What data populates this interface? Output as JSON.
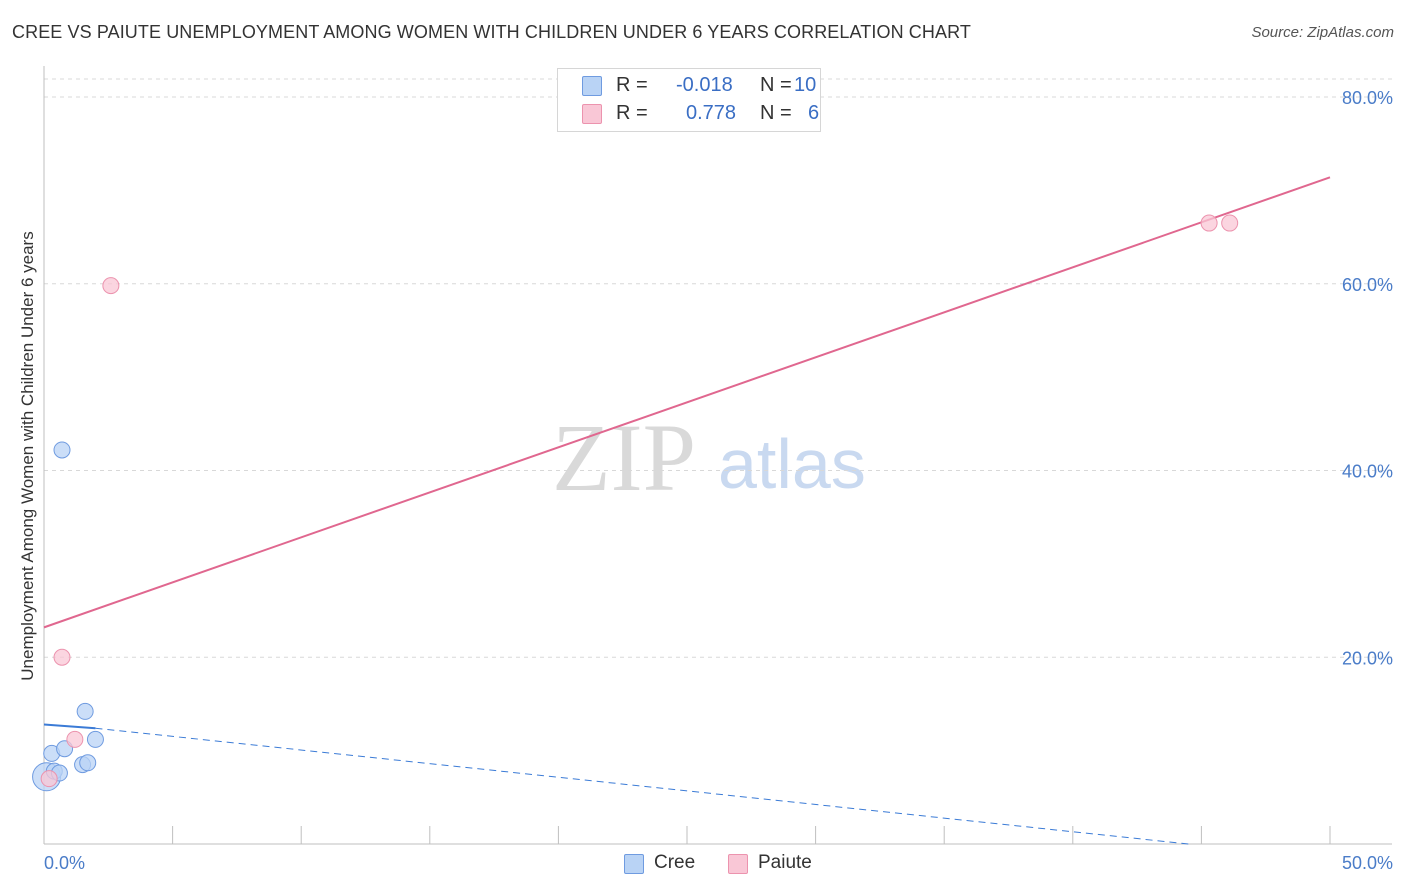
{
  "header": {
    "title": "CREE VS PAIUTE UNEMPLOYMENT AMONG WOMEN WITH CHILDREN UNDER 6 YEARS CORRELATION CHART",
    "source": "Source: ZipAtlas.com"
  },
  "watermark": {
    "zip": "ZIP",
    "atlas": "atlas"
  },
  "colors": {
    "cree_fill": "#b9d3f5",
    "cree_stroke": "#6f9be0",
    "cree_line": "#3b7bd6",
    "paiute_fill": "#f9c7d6",
    "paiute_stroke": "#ec93ae",
    "paiute_line": "#e0678f",
    "grid": "#d8d8d8",
    "tick_text": "#4a7cc8"
  },
  "legend": {
    "rows": [
      {
        "r_label": "R =",
        "r_value": "-0.018",
        "n_label": "N =",
        "n_value": "10"
      },
      {
        "r_label": "R =",
        "r_value": "0.778",
        "n_label": "N =",
        "n_value": "6"
      }
    ]
  },
  "bottom_legend": [
    "Cree",
    "Paiute"
  ],
  "chart_data": {
    "type": "scatter",
    "title": "CREE VS PAIUTE UNEMPLOYMENT AMONG WOMEN WITH CHILDREN UNDER 6 YEARS CORRELATION CHART",
    "xlabel": "",
    "ylabel": "Unemployment Among Women with Children Under 6 years",
    "xlim": [
      0,
      50
    ],
    "ylim": [
      0,
      80
    ],
    "x_tick_labels": [
      "0.0%",
      "50.0%"
    ],
    "y_ticks": [
      20,
      40,
      60,
      80
    ],
    "y_tick_labels": [
      "20.0%",
      "40.0%",
      "60.0%",
      "80.0%"
    ],
    "grid": true,
    "series": [
      {
        "name": "Cree",
        "points": [
          {
            "x": 0.1,
            "y": 7.2,
            "big": true
          },
          {
            "x": 0.3,
            "y": 9.7
          },
          {
            "x": 0.4,
            "y": 7.8
          },
          {
            "x": 0.6,
            "y": 7.6
          },
          {
            "x": 0.7,
            "y": 42.2
          },
          {
            "x": 0.8,
            "y": 10.2
          },
          {
            "x": 1.5,
            "y": 8.5
          },
          {
            "x": 1.6,
            "y": 14.2
          },
          {
            "x": 1.7,
            "y": 8.7
          },
          {
            "x": 2.0,
            "y": 11.2
          }
        ],
        "trend": {
          "x0": 0,
          "y0": 12.8,
          "x1": 2.0,
          "y1": 12.4,
          "dash_to_x": 44.5,
          "dash_to_y": 0
        }
      },
      {
        "name": "Paiute",
        "points": [
          {
            "x": 0.2,
            "y": 7.0
          },
          {
            "x": 0.7,
            "y": 20.0
          },
          {
            "x": 1.2,
            "y": 11.2
          },
          {
            "x": 2.6,
            "y": 59.8
          },
          {
            "x": 45.3,
            "y": 66.5
          },
          {
            "x": 46.1,
            "y": 66.5
          }
        ],
        "trend": {
          "x0": 0,
          "y0": 23.2,
          "x1": 50,
          "y1": 71.4
        }
      }
    ]
  }
}
